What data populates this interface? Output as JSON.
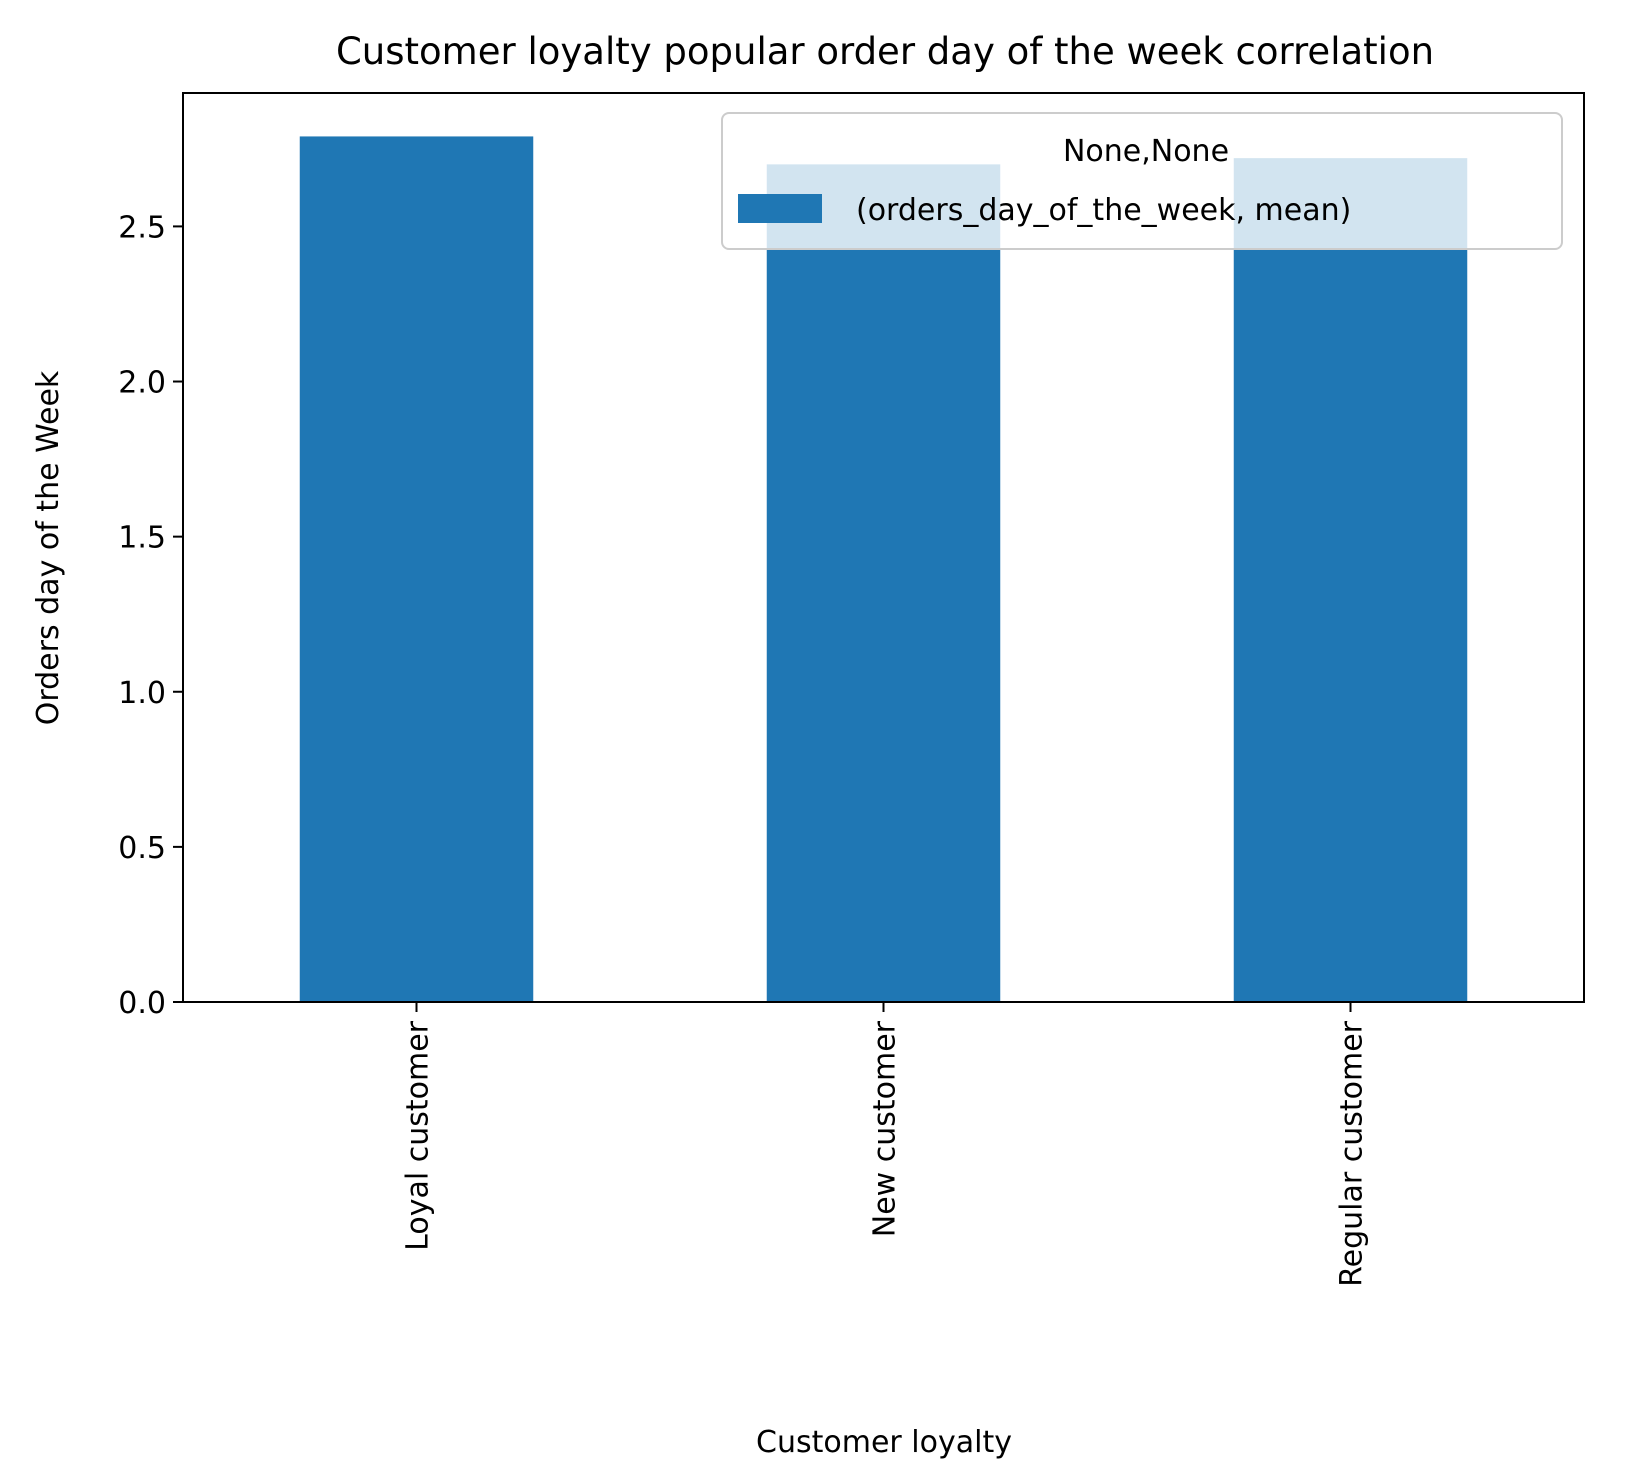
{
  "chart_data": {
    "type": "bar",
    "title": "Customer loyalty popular order day of the week correlation",
    "xlabel": "Customer loyalty",
    "ylabel": "Orders day of the Week",
    "categories": [
      "Loyal customer",
      "New customer",
      "Regular customer"
    ],
    "series": [
      {
        "name": "(orders_day_of_the_week, mean)",
        "values": [
          2.79,
          2.7,
          2.72
        ],
        "color": "#1f77b4"
      }
    ],
    "ylim": [
      0,
      2.93
    ],
    "yticks": [
      0.0,
      0.5,
      1.0,
      1.5,
      2.0,
      2.5
    ],
    "ytick_labels": [
      "0.0",
      "0.5",
      "1.0",
      "1.5",
      "2.0",
      "2.5"
    ],
    "grid": false,
    "legend": {
      "title": "None,None",
      "position": "top-right"
    }
  }
}
